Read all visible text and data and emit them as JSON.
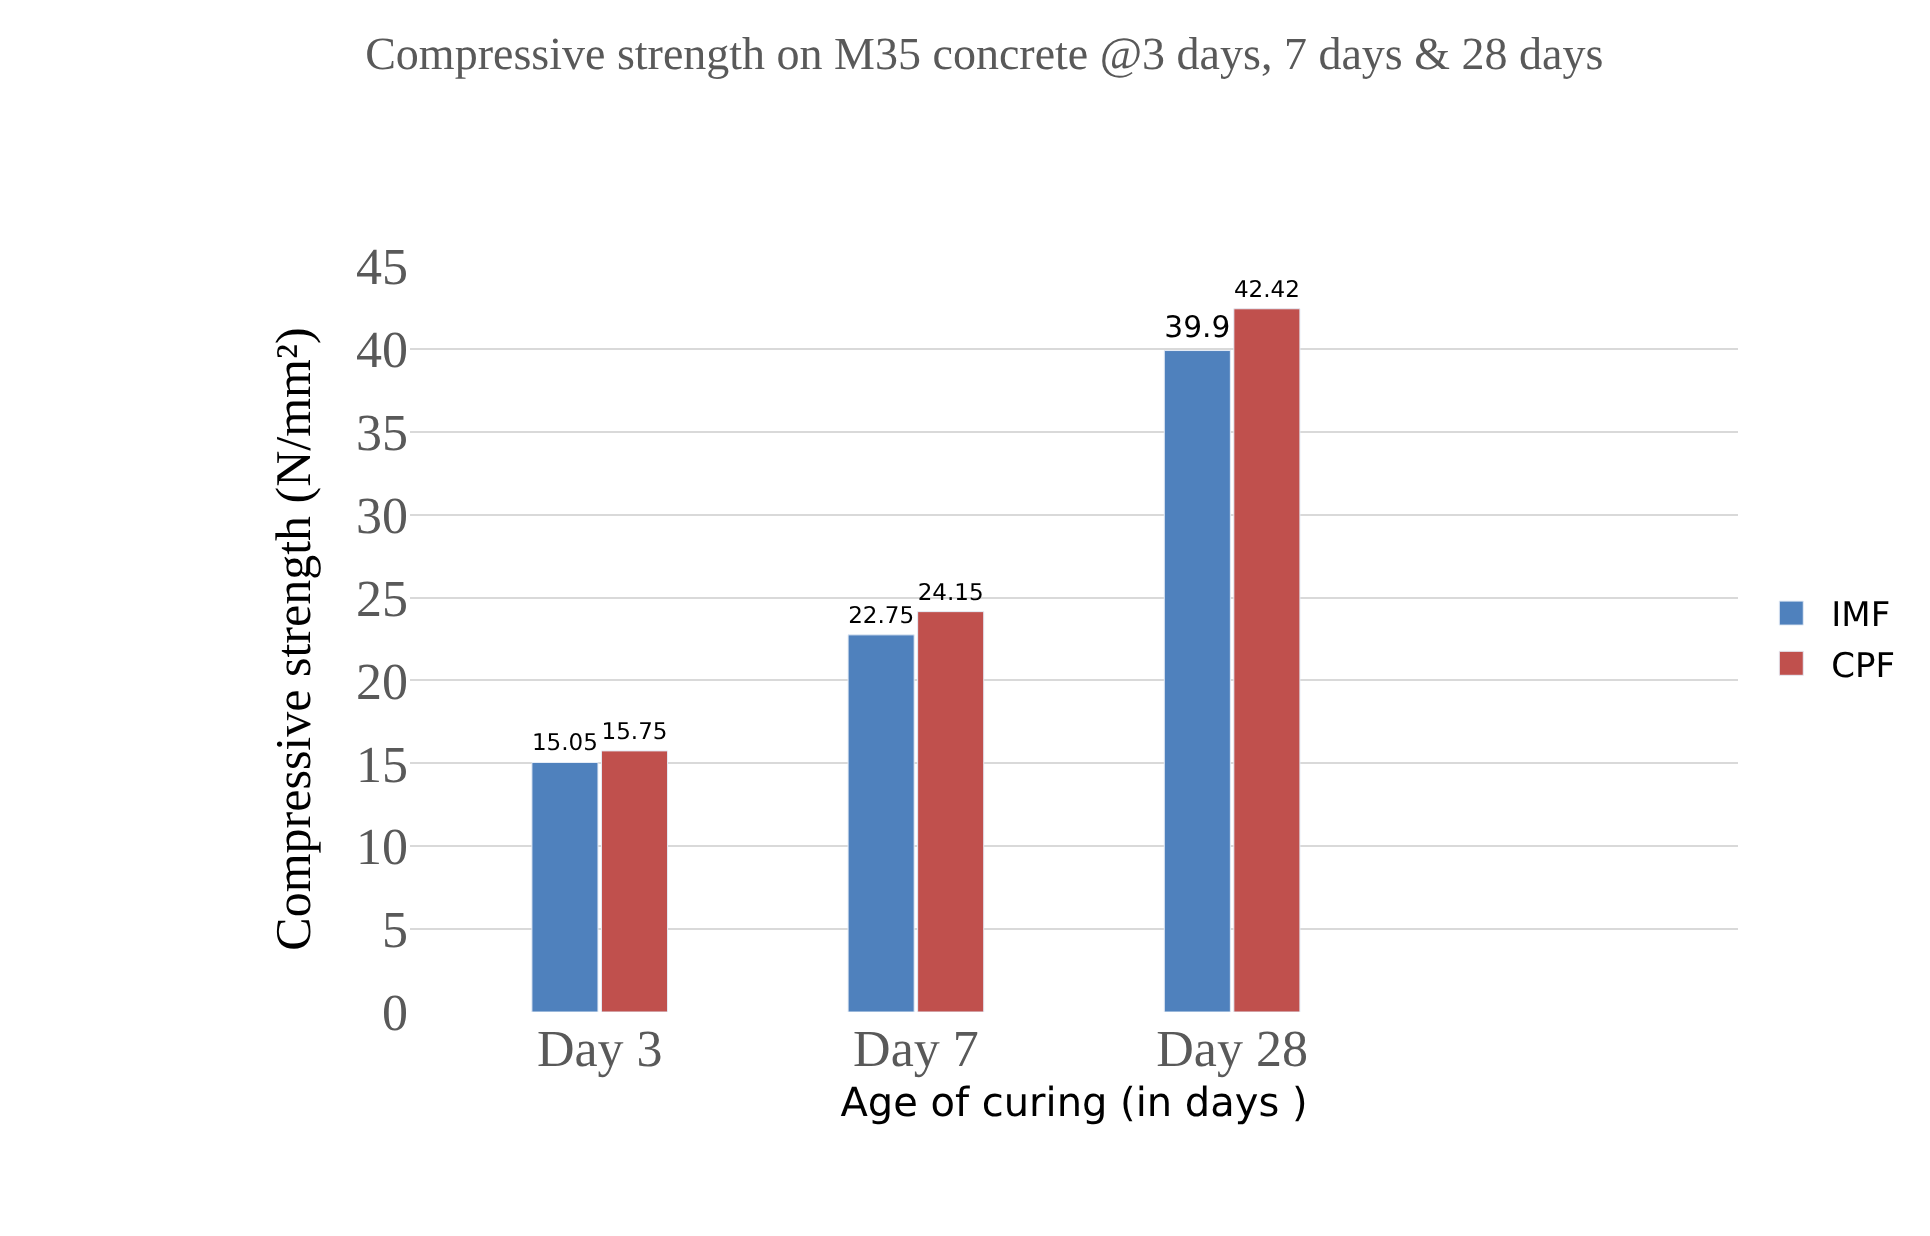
{
  "chart_data": {
    "type": "bar",
    "title": "Compressive strength on M35 concrete @3 days, 7 days & 28 days",
    "xlabel": "Age of curing (in days )",
    "ylabel": "Compressive strength (N/mm²)",
    "categories": [
      "Day 3",
      "Day 7",
      "Day 28"
    ],
    "series": [
      {
        "name": "IMF",
        "color": "#4f81bd",
        "values": [
          15.05,
          22.75,
          39.9
        ]
      },
      {
        "name": "CPF",
        "color": "#c0504d",
        "values": [
          15.75,
          24.15,
          42.42
        ]
      }
    ],
    "ylim": [
      0,
      45
    ],
    "yticks": [
      0,
      5,
      10,
      15,
      20,
      25,
      30,
      35,
      40,
      45
    ],
    "grid": "y",
    "legend": "right",
    "data_labels": true
  }
}
